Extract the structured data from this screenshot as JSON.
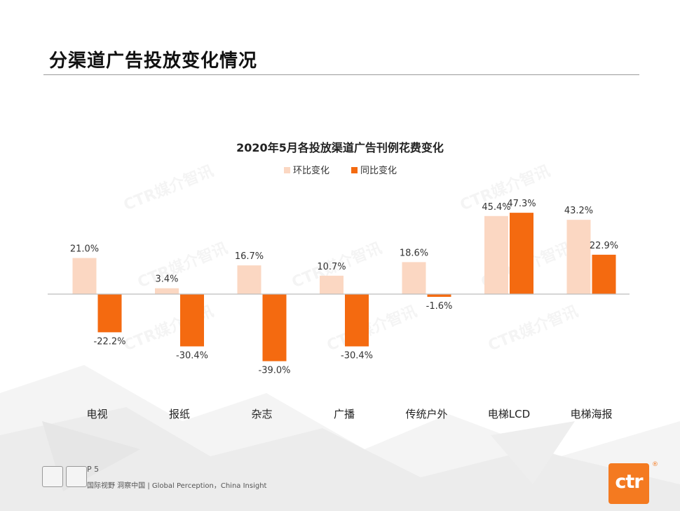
{
  "slide": {
    "title": "分渠道广告投放变化情况",
    "page": "P 5",
    "tagline": "国际视野  洞察中国 |  Global Perception，China Insight",
    "logo_text": "ctr",
    "logo_reg": "®",
    "watermark": "CTR媒介智讯"
  },
  "colors": {
    "mom": "#fbd7c2",
    "yoy": "#f46a10",
    "axis": "#bdbdbd",
    "logo": "#f47a20"
  },
  "chart_data": {
    "type": "bar",
    "title": "2020年5月各投放渠道广告刊例花费变化",
    "legend_position": "top",
    "categories": [
      "电视",
      "报纸",
      "杂志",
      "广播",
      "传统户外",
      "电梯LCD",
      "电梯海报"
    ],
    "series": [
      {
        "name": "环比变化",
        "values": [
          21.0,
          3.4,
          16.7,
          10.7,
          18.6,
          45.4,
          43.2
        ],
        "labels": [
          "21.0%",
          "3.4%",
          "16.7%",
          "10.7%",
          "18.6%",
          "45.4%",
          "43.2%"
        ]
      },
      {
        "name": "同比变化",
        "values": [
          -22.2,
          -30.4,
          -39.0,
          -30.4,
          -1.6,
          47.3,
          22.9
        ],
        "labels": [
          "-22.2%",
          "-30.4%",
          "-39.0%",
          "-30.4%",
          "-1.6%",
          "47.3%",
          "22.9%"
        ]
      }
    ],
    "ylim": [
      -45,
      50
    ],
    "grid": false
  }
}
